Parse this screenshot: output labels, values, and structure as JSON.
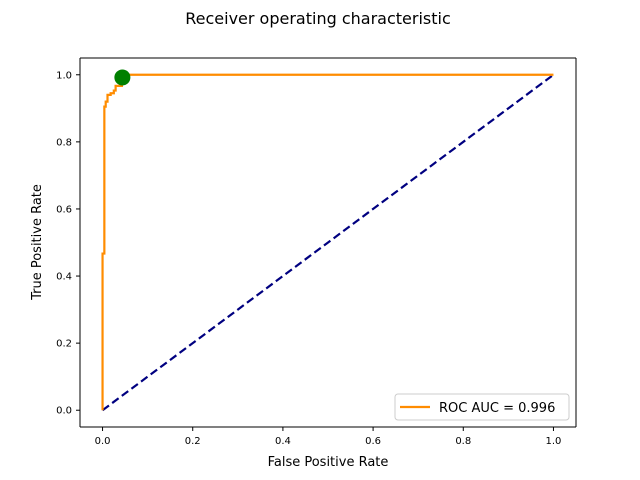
{
  "chart_data": {
    "type": "line",
    "title": "Receiver operating characteristic",
    "xlabel": "False Positive Rate",
    "ylabel": "True Positive Rate",
    "xlim": [
      -0.05,
      1.05
    ],
    "ylim": [
      -0.05,
      1.05
    ],
    "xticks": [
      0.0,
      0.2,
      0.4,
      0.6,
      0.8,
      1.0
    ],
    "yticks": [
      0.0,
      0.2,
      0.4,
      0.6,
      0.8,
      1.0
    ],
    "xtick_labels": [
      "0.0",
      "0.2",
      "0.4",
      "0.6",
      "0.8",
      "1.0"
    ],
    "ytick_labels": [
      "0.0",
      "0.2",
      "0.4",
      "0.6",
      "0.8",
      "1.0"
    ],
    "grid": false,
    "legend_position": "lower right",
    "series": [
      {
        "name": "ROC AUC = 0.996",
        "kind": "step-line",
        "color": "#ff8c00",
        "x": [
          0.0,
          0.0,
          0.004,
          0.004,
          0.007,
          0.007,
          0.011,
          0.011,
          0.018,
          0.018,
          0.025,
          0.025,
          0.029,
          0.029,
          0.043,
          0.043,
          1.0
        ],
        "y": [
          0.0,
          0.467,
          0.467,
          0.905,
          0.905,
          0.92,
          0.92,
          0.94,
          0.94,
          0.945,
          0.945,
          0.953,
          0.953,
          0.967,
          0.967,
          1.0,
          1.0
        ]
      },
      {
        "kind": "dashed-line",
        "color": "#000080",
        "x": [
          0.0,
          1.0
        ],
        "y": [
          0.0,
          1.0
        ]
      },
      {
        "kind": "marker",
        "color": "#008000",
        "x": [
          0.044
        ],
        "y": [
          0.992
        ]
      }
    ]
  }
}
